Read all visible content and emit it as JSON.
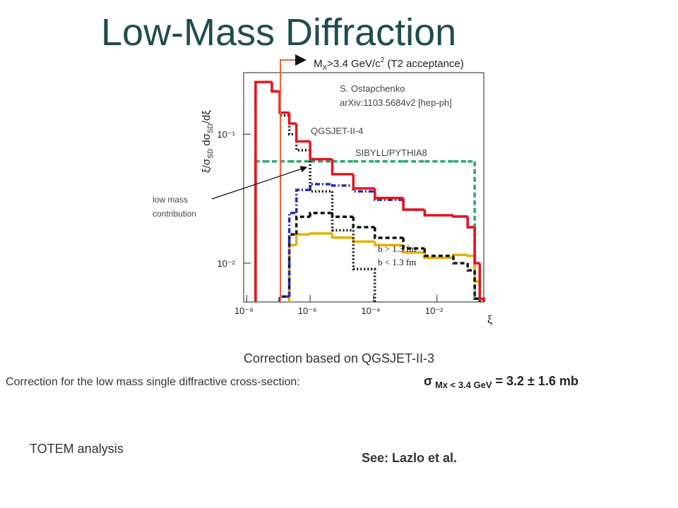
{
  "title": "Low-Mass Diffraction",
  "chart_data": {
    "type": "line",
    "step": true,
    "xlog": true,
    "ylog": true,
    "x": [
      1.9e-08,
      3.6e-08,
      6.2e-08,
      1.1e-07,
      2.2e-07,
      3.7e-07,
      1e-06,
      5e-06,
      2.3e-05,
      0.00011,
      0.00087,
      0.0041,
      0.033,
      0.093,
      0.155,
      0.224
    ],
    "series": [
      {
        "name": "SIBYLL/PYTHIA8",
        "color": "#2aa870",
        "dash": "7 4",
        "values": [
          0.0615,
          0.0615,
          0.0615,
          0.0615,
          0.0615,
          0.0615,
          0.0615,
          0.0615,
          0.0615,
          0.0615,
          0.0615,
          0.0615,
          0.0615,
          0.0615,
          0.0053,
          null
        ]
      },
      {
        "name": "b < 1.3 fm",
        "color": "#e6b000",
        "dash": "none",
        "values": [
          null,
          null,
          null,
          null,
          0.0138,
          0.0167,
          0.017,
          0.0158,
          0.0147,
          0.0138,
          0.0121,
          0.011,
          0.0116,
          0.0114,
          0.0072,
          0.0053
        ]
      },
      {
        "name": "b > 1.3 fm",
        "color": "#111111",
        "dash": "6 4",
        "values": [
          null,
          null,
          null,
          0.0055,
          0.0167,
          0.0229,
          0.0245,
          0.0229,
          0.019,
          0.0157,
          0.013,
          0.0114,
          0.01,
          0.0088,
          0.0053,
          null
        ]
      },
      {
        "color": "#2a2ab8",
        "dash": "7 3 2 3",
        "values": [
          null,
          null,
          null,
          0.0055,
          0.0245,
          0.037,
          0.041,
          0.04,
          0.036,
          0.031,
          0.026,
          0.0235,
          0.023,
          0.019,
          0.01,
          0.0053
        ]
      },
      {
        "name": "QGSJET-II-4",
        "color": "#111111",
        "dash": "2 3",
        "values": [
          0.254,
          0.254,
          0.215,
          0.14,
          0.1,
          0.075,
          0.036,
          0.018,
          0.009,
          null,
          null,
          null,
          null,
          null,
          null,
          null
        ]
      },
      {
        "color": "#e8141c",
        "dash": "none",
        "values": [
          0.254,
          0.254,
          0.215,
          0.147,
          0.121,
          0.088,
          0.064,
          0.049,
          0.038,
          0.032,
          0.026,
          0.0235,
          0.023,
          0.019,
          0.01,
          0.0053
        ]
      }
    ],
    "xlim": [
      8e-09,
      0.3
    ],
    "ylim": [
      0.005,
      0.3
    ],
    "xticks": [
      {
        "value": 1e-08,
        "label": "10⁻⁸"
      },
      {
        "value": 1e-06,
        "label": "10⁻⁶"
      },
      {
        "value": 0.0001,
        "label": "10⁻⁴"
      },
      {
        "value": 0.01,
        "label": "10⁻²"
      }
    ],
    "yticks": [
      {
        "value": 0.1,
        "label": "10⁻¹"
      },
      {
        "value": 0.01,
        "label": "10⁻²"
      }
    ],
    "xlabel": "ξ",
    "ylabel": [
      "ξ/σ",
      "SD",
      " dσ",
      "SD",
      "/dξ"
    ],
    "cut": [
      "M",
      "X",
      ">3.4 GeV/c",
      "2",
      " (T2 acceptance)"
    ],
    "reference": [
      "S. Ostapchenko",
      "arXiv:1103.5684v2  [hep-ph]"
    ],
    "low_mass": [
      "low mass",
      "contribution"
    ]
  },
  "correction_model": "Correction based on QGSJET-II-3",
  "correction": {
    "text": "Correction  for the low mass single diffractive cross-section:",
    "formula": [
      "σ",
      " Mx < 3.4 GeV",
      " = 3.2 ± 1.6 mb"
    ]
  },
  "analysis": "TOTEM analysis",
  "see": "See: Lazlo et al."
}
